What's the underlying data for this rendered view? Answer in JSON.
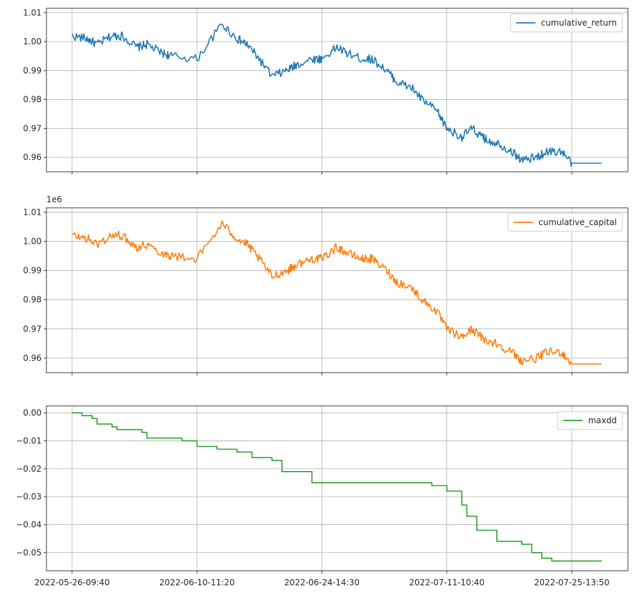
{
  "chart_data": [
    {
      "type": "line",
      "x_ticks": [
        "2022-05-26-09:40",
        "2022-06-10-11:20",
        "2022-06-24-14:30",
        "2022-07-11-10:40",
        "2022-07-25-13:50"
      ],
      "x_tick_labels_visible": false,
      "ylim": [
        0.955,
        1.0115
      ],
      "y_ticks": [
        0.96,
        0.97,
        0.98,
        0.99,
        1.0,
        1.01
      ],
      "y_tick_labels": [
        "0.96",
        "0.97",
        "0.98",
        "0.99",
        "1.00",
        "1.01"
      ],
      "offset_text": "",
      "grid": true,
      "legend": "top-right",
      "series": [
        {
          "name": "cumulative_return",
          "color": "#1f77b4",
          "x": [
            0.0,
            0.03,
            0.05,
            0.08,
            0.1,
            0.13,
            0.15,
            0.18,
            0.2,
            0.25,
            0.3,
            0.33,
            0.35,
            0.37,
            0.4,
            0.43,
            0.45,
            0.48,
            0.5,
            0.53,
            0.55,
            0.58,
            0.6,
            0.63,
            0.65,
            0.68,
            0.7,
            0.73,
            0.75,
            0.78,
            0.8,
            0.82,
            0.83,
            0.85,
            0.88,
            0.9,
            0.93,
            0.95,
            0.98,
            1.0,
            1.05,
            1.06
          ],
          "y": [
            1.002,
            1.001,
            0.999,
            1.002,
            1.002,
            0.998,
            0.999,
            0.996,
            0.995,
            0.994,
            1.006,
            1.001,
            0.999,
            0.995,
            0.988,
            0.99,
            0.992,
            0.994,
            0.994,
            0.998,
            0.996,
            0.994,
            0.994,
            0.99,
            0.986,
            0.984,
            0.98,
            0.976,
            0.97,
            0.967,
            0.97,
            0.967,
            0.966,
            0.965,
            0.962,
            0.959,
            0.96,
            0.962,
            0.962,
            0.958,
            0.958,
            0.958
          ]
        }
      ]
    },
    {
      "type": "line",
      "x_ticks": [
        "2022-05-26-09:40",
        "2022-06-10-11:20",
        "2022-06-24-14:30",
        "2022-07-11-10:40",
        "2022-07-25-13:50"
      ],
      "x_tick_labels_visible": false,
      "ylim": [
        0.955,
        1.0115
      ],
      "y_ticks": [
        0.96,
        0.97,
        0.98,
        0.99,
        1.0,
        1.01
      ],
      "y_tick_labels": [
        "0.96",
        "0.97",
        "0.98",
        "0.99",
        "1.00",
        "1.01"
      ],
      "offset_text": "1e6",
      "grid": true,
      "legend": "top-right",
      "series": [
        {
          "name": "cumulative_capital",
          "color": "#ff7f0e",
          "x": [
            0.0,
            0.03,
            0.05,
            0.08,
            0.1,
            0.13,
            0.15,
            0.18,
            0.2,
            0.25,
            0.3,
            0.33,
            0.35,
            0.37,
            0.4,
            0.43,
            0.45,
            0.48,
            0.5,
            0.53,
            0.55,
            0.58,
            0.6,
            0.63,
            0.65,
            0.68,
            0.7,
            0.73,
            0.75,
            0.78,
            0.8,
            0.82,
            0.83,
            0.85,
            0.88,
            0.9,
            0.93,
            0.95,
            0.98,
            1.0,
            1.05,
            1.06
          ],
          "y": [
            1.002,
            1.001,
            0.999,
            1.002,
            1.002,
            0.998,
            0.999,
            0.996,
            0.995,
            0.994,
            1.006,
            1.001,
            0.999,
            0.995,
            0.988,
            0.99,
            0.992,
            0.994,
            0.994,
            0.998,
            0.996,
            0.994,
            0.994,
            0.99,
            0.986,
            0.984,
            0.98,
            0.976,
            0.97,
            0.967,
            0.97,
            0.967,
            0.966,
            0.965,
            0.962,
            0.959,
            0.96,
            0.962,
            0.962,
            0.958,
            0.958,
            0.958
          ]
        }
      ]
    },
    {
      "type": "line",
      "x_ticks": [
        "2022-05-26-09:40",
        "2022-06-10-11:20",
        "2022-06-24-14:30",
        "2022-07-11-10:40",
        "2022-07-25-13:50"
      ],
      "x_tick_labels_visible": true,
      "ylim": [
        -0.0565,
        0.0025
      ],
      "y_ticks": [
        0.0,
        -0.01,
        -0.02,
        -0.03,
        -0.04,
        -0.05
      ],
      "y_tick_labels": [
        "0.00",
        "−0.01",
        "−0.02",
        "−0.03",
        "−0.04",
        "−0.05"
      ],
      "offset_text": "",
      "grid": true,
      "legend": "top-right",
      "series": [
        {
          "name": "maxdd",
          "color": "#2ca02c",
          "x": [
            0.0,
            0.02,
            0.04,
            0.05,
            0.08,
            0.09,
            0.12,
            0.14,
            0.15,
            0.22,
            0.25,
            0.25,
            0.29,
            0.33,
            0.36,
            0.4,
            0.42,
            0.48,
            0.59,
            0.61,
            0.64,
            0.71,
            0.72,
            0.75,
            0.78,
            0.79,
            0.81,
            0.85,
            0.86,
            0.9,
            0.92,
            0.94,
            0.96,
            1.0,
            1.06
          ],
          "y": [
            0.0,
            -0.001,
            -0.002,
            -0.004,
            -0.005,
            -0.006,
            -0.006,
            -0.007,
            -0.009,
            -0.01,
            -0.012,
            -0.012,
            -0.013,
            -0.014,
            -0.016,
            -0.017,
            -0.021,
            -0.025,
            -0.025,
            -0.025,
            -0.025,
            -0.025,
            -0.026,
            -0.028,
            -0.033,
            -0.037,
            -0.042,
            -0.046,
            -0.046,
            -0.047,
            -0.05,
            -0.052,
            -0.053,
            -0.053,
            -0.053
          ]
        }
      ]
    }
  ]
}
